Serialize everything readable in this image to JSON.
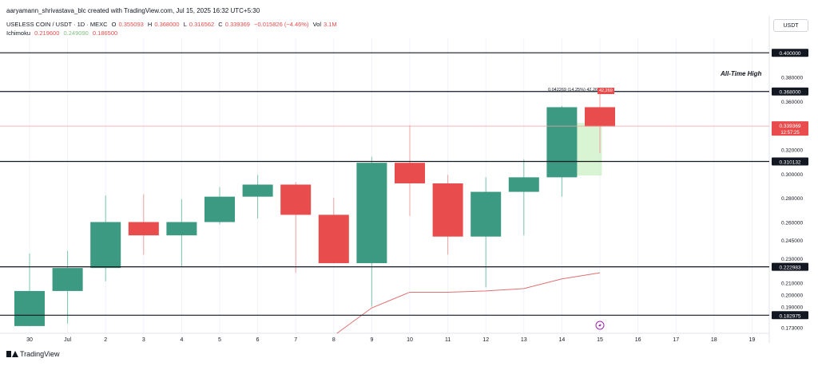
{
  "header": {
    "credit": "aaryamann_shrivastava_blc created with TradingView.com, Jul 15, 2025 16:32 UTC+5:30",
    "symbol": "USELESS COIN / USDT · 1D · MEXC",
    "ohlc": {
      "o_label": "O",
      "o": "0.355093",
      "h_label": "H",
      "h": "0.368000",
      "l_label": "L",
      "l": "0.316562",
      "c_label": "C",
      "c": "0.339369",
      "change": "−0.015826 (−4.46%)",
      "vol_label": "Vol",
      "vol": "3.1M"
    },
    "ichimoku": {
      "label": "Ichimoku",
      "v1": "0.219600",
      "v2": "0.249090",
      "v3": "0.186500"
    }
  },
  "unit_button": "USDT",
  "footer": {
    "logo_text": "TradingView"
  },
  "measure": {
    "text": "0.042269 (14.25%) 42,269",
    "value": "42,269"
  },
  "ath_label": "All-Time High",
  "colors": {
    "up": "#3d9a82",
    "down": "#e84c4c",
    "ichimoku_line": "#e07070",
    "grid": "#f0f3fa"
  },
  "chart_data": {
    "type": "candlestick",
    "x_ticks": [
      "30",
      "Jul",
      "2",
      "3",
      "4",
      "5",
      "6",
      "7",
      "8",
      "9",
      "10",
      "11",
      "12",
      "13",
      "14",
      "15",
      "16",
      "17",
      "18",
      "19"
    ],
    "y_ticks": [
      "0.380000",
      "0.360000",
      "0.320000",
      "0.300000",
      "0.280000",
      "0.260000",
      "0.245000",
      "0.230000",
      "0.210000",
      "0.200000",
      "0.190000",
      "0.173000"
    ],
    "ylim": [
      0.168,
      0.412
    ],
    "candles": [
      {
        "d": "30",
        "o": 0.174,
        "h": 0.234,
        "l": 0.176,
        "c": 0.203
      },
      {
        "d": "Jul",
        "o": 0.203,
        "h": 0.236,
        "l": 0.176,
        "c": 0.222
      },
      {
        "d": "2",
        "o": 0.222,
        "h": 0.282,
        "l": 0.211,
        "c": 0.26
      },
      {
        "d": "3",
        "o": 0.26,
        "h": 0.283,
        "l": 0.233,
        "c": 0.249
      },
      {
        "d": "4",
        "o": 0.249,
        "h": 0.279,
        "l": 0.223,
        "c": 0.26
      },
      {
        "d": "5",
        "o": 0.26,
        "h": 0.289,
        "l": 0.258,
        "c": 0.281
      },
      {
        "d": "6",
        "o": 0.281,
        "h": 0.299,
        "l": 0.263,
        "c": 0.291
      },
      {
        "d": "7",
        "o": 0.291,
        "h": 0.293,
        "l": 0.218,
        "c": 0.266
      },
      {
        "d": "8",
        "o": 0.266,
        "h": 0.28,
        "l": 0.226,
        "c": 0.226
      },
      {
        "d": "9",
        "o": 0.226,
        "h": 0.314,
        "l": 0.19,
        "c": 0.309
      },
      {
        "d": "10",
        "o": 0.309,
        "h": 0.34,
        "l": 0.265,
        "c": 0.292
      },
      {
        "d": "11",
        "o": 0.292,
        "h": 0.299,
        "l": 0.233,
        "c": 0.248
      },
      {
        "d": "12",
        "o": 0.248,
        "h": 0.297,
        "l": 0.206,
        "c": 0.285
      },
      {
        "d": "13",
        "o": 0.285,
        "h": 0.312,
        "l": 0.249,
        "c": 0.297
      },
      {
        "d": "14",
        "o": 0.297,
        "h": 0.356,
        "l": 0.281,
        "c": 0.355
      },
      {
        "d": "15",
        "o": 0.355,
        "h": 0.368,
        "l": 0.317,
        "c": 0.339
      }
    ],
    "levels": [
      {
        "label": "0.400000",
        "value": 0.4
      },
      {
        "label": "0.368000",
        "value": 0.368
      },
      {
        "label": "0.310132",
        "value": 0.310132
      },
      {
        "label": "0.222983",
        "value": 0.222983
      },
      {
        "label": "0.182975",
        "value": 0.182975
      }
    ],
    "price_tags": [
      {
        "label": "0.339369",
        "sublabel": "12:57:25",
        "value": 0.339369
      }
    ],
    "ichimoku_line": [
      {
        "d": "8",
        "v": 0.168
      },
      {
        "d": "9",
        "v": 0.189
      },
      {
        "d": "10",
        "v": 0.202
      },
      {
        "d": "11",
        "v": 0.202
      },
      {
        "d": "12",
        "v": 0.203
      },
      {
        "d": "13",
        "v": 0.205
      },
      {
        "d": "14",
        "v": 0.213
      },
      {
        "d": "15",
        "v": 0.218
      }
    ]
  }
}
